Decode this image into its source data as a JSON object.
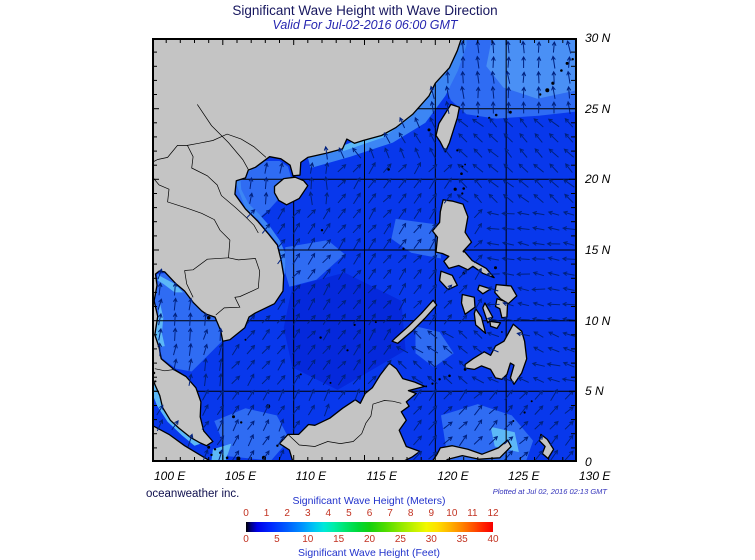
{
  "title": "Significant Wave Height with Wave Direction",
  "subtitle": "Valid For Jul-02-2016 06:00 GMT",
  "credit": "oceanweather inc.",
  "plotted_note": "Plotted at Jul 02, 2016 02:13 GMT",
  "axes": {
    "lon_labels": [
      "100 E",
      "105 E",
      "110 E",
      "115 E",
      "120 E",
      "125 E",
      "130 E"
    ],
    "lat_labels": [
      "30 N",
      "25 N",
      "20 N",
      "15 N",
      "10 N",
      "5 N",
      "0"
    ]
  },
  "colorbar": {
    "meters_label": "Significant Wave Height (Meters)",
    "feet_label": "Significant Wave Height (Feet)",
    "meters_ticks": [
      "0",
      "1",
      "2",
      "3",
      "4",
      "5",
      "6",
      "7",
      "8",
      "9",
      "10",
      "11",
      "12"
    ],
    "feet_ticks": [
      "0",
      "5",
      "10",
      "15",
      "20",
      "25",
      "30",
      "35",
      "40"
    ],
    "gradient": [
      [
        0,
        "#000000"
      ],
      [
        0.02,
        "#000080"
      ],
      [
        0.045,
        "#0000e8"
      ],
      [
        0.1,
        "#0028ff"
      ],
      [
        0.165,
        "#005cff"
      ],
      [
        0.225,
        "#0090ff"
      ],
      [
        0.275,
        "#00c4f4"
      ],
      [
        0.315,
        "#00e8da"
      ],
      [
        0.355,
        "#00eea8"
      ],
      [
        0.4,
        "#00e570"
      ],
      [
        0.455,
        "#00d838"
      ],
      [
        0.5,
        "#14d010"
      ],
      [
        0.565,
        "#50dc00"
      ],
      [
        0.625,
        "#90e800"
      ],
      [
        0.685,
        "#c8f200"
      ],
      [
        0.73,
        "#f2f800"
      ],
      [
        0.775,
        "#ffdf00"
      ],
      [
        0.825,
        "#ffb400"
      ],
      [
        0.875,
        "#ff8300"
      ],
      [
        0.925,
        "#ff4d00"
      ],
      [
        0.965,
        "#ff1e00"
      ],
      [
        1,
        "#f60000"
      ]
    ]
  },
  "colors": {
    "ocean": "#0838ec",
    "land": "#c4c4c4",
    "coast": "#000000",
    "arrow": "#00217e",
    "grid": "#000000",
    "tick_text": "#c23322",
    "legend_text": "#2233cc"
  }
}
